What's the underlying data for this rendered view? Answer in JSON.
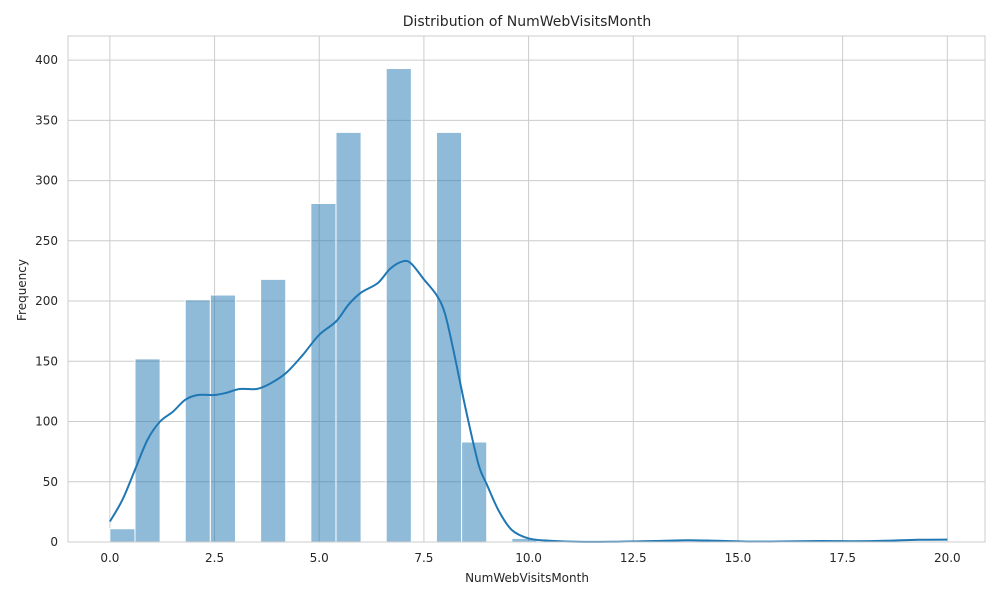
{
  "chart_data": {
    "type": "histogram",
    "title": "Distribution of NumWebVisitsMonth",
    "xlabel": "NumWebVisitsMonth",
    "ylabel": "Frequency",
    "xlim": [
      -1.0,
      20.9
    ],
    "ylim": [
      0,
      420
    ],
    "x_ticks": [
      "0.0",
      "2.5",
      "5.0",
      "7.5",
      "10.0",
      "12.5",
      "15.0",
      "17.5",
      "20.0"
    ],
    "y_ticks": [
      "0",
      "50",
      "100",
      "150",
      "200",
      "250",
      "300",
      "350",
      "400"
    ],
    "grid": true,
    "bin_width": 0.6,
    "bins": [
      {
        "x0": 0.0,
        "count": 11
      },
      {
        "x0": 0.6,
        "count": 152
      },
      {
        "x0": 1.8,
        "count": 201
      },
      {
        "x0": 2.4,
        "count": 205
      },
      {
        "x0": 3.6,
        "count": 218
      },
      {
        "x0": 4.8,
        "count": 281
      },
      {
        "x0": 5.4,
        "count": 340
      },
      {
        "x0": 6.6,
        "count": 393
      },
      {
        "x0": 7.8,
        "count": 340
      },
      {
        "x0": 8.4,
        "count": 83
      },
      {
        "x0": 9.6,
        "count": 3
      }
    ],
    "kde": [
      [
        0.0,
        17
      ],
      [
        0.3,
        35
      ],
      [
        0.6,
        60
      ],
      [
        0.9,
        85
      ],
      [
        1.2,
        100
      ],
      [
        1.5,
        108
      ],
      [
        1.8,
        118
      ],
      [
        2.1,
        122
      ],
      [
        2.5,
        122
      ],
      [
        2.8,
        124
      ],
      [
        3.1,
        127
      ],
      [
        3.5,
        127
      ],
      [
        3.8,
        131
      ],
      [
        4.2,
        140
      ],
      [
        4.6,
        155
      ],
      [
        5.0,
        172
      ],
      [
        5.4,
        183
      ],
      [
        5.7,
        197
      ],
      [
        6.0,
        207
      ],
      [
        6.4,
        215
      ],
      [
        6.7,
        227
      ],
      [
        7.0,
        233
      ],
      [
        7.2,
        231
      ],
      [
        7.5,
        218
      ],
      [
        7.8,
        205
      ],
      [
        8.0,
        190
      ],
      [
        8.2,
        160
      ],
      [
        8.5,
        110
      ],
      [
        8.8,
        65
      ],
      [
        9.0,
        48
      ],
      [
        9.3,
        25
      ],
      [
        9.6,
        10
      ],
      [
        10.0,
        3
      ],
      [
        10.5,
        1
      ],
      [
        11.0,
        0.3
      ],
      [
        12.0,
        0.2
      ],
      [
        13.0,
        0.8
      ],
      [
        13.8,
        1.5
      ],
      [
        14.5,
        1.0
      ],
      [
        15.2,
        0.3
      ],
      [
        16.0,
        0.4
      ],
      [
        17.0,
        0.8
      ],
      [
        17.8,
        0.6
      ],
      [
        18.5,
        1.0
      ],
      [
        19.3,
        1.8
      ],
      [
        20.0,
        2
      ]
    ]
  }
}
